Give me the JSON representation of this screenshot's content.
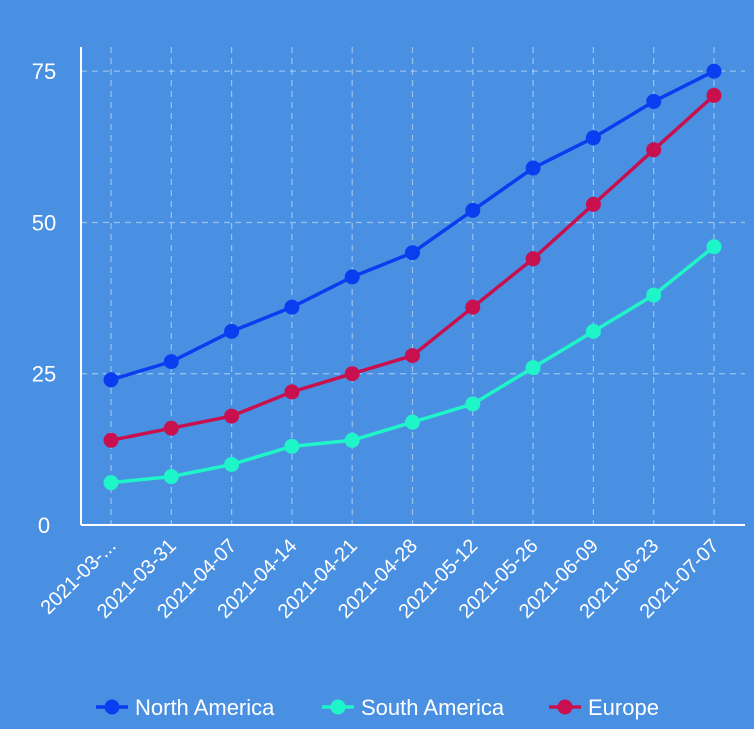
{
  "chart_data": {
    "type": "line",
    "categories": [
      "2021-03-...",
      "2021-03-31",
      "2021-04-07",
      "2021-04-14",
      "2021-04-21",
      "2021-04-28",
      "2021-05-12",
      "2021-05-26",
      "2021-06-09",
      "2021-06-23",
      "2021-07-07"
    ],
    "series": [
      {
        "name": "North America",
        "color": "#0a3cf0",
        "values": [
          24,
          27,
          32,
          36,
          41,
          45,
          52,
          59,
          64,
          70,
          75
        ]
      },
      {
        "name": "South America",
        "color": "#1ef5c8",
        "values": [
          7,
          8,
          10,
          13,
          14,
          17,
          20,
          26,
          32,
          38,
          46
        ]
      },
      {
        "name": "Europe",
        "color": "#c8104e",
        "values": [
          14,
          16,
          18,
          22,
          25,
          28,
          36,
          44,
          53,
          62,
          71
        ]
      }
    ],
    "yticks": [
      "0",
      "25",
      "50",
      "75"
    ],
    "ylim": [
      0,
      79
    ],
    "grid": true,
    "legend_position": "bottom-center",
    "background": "#4a90e2",
    "axis_color": "#ffffff"
  }
}
